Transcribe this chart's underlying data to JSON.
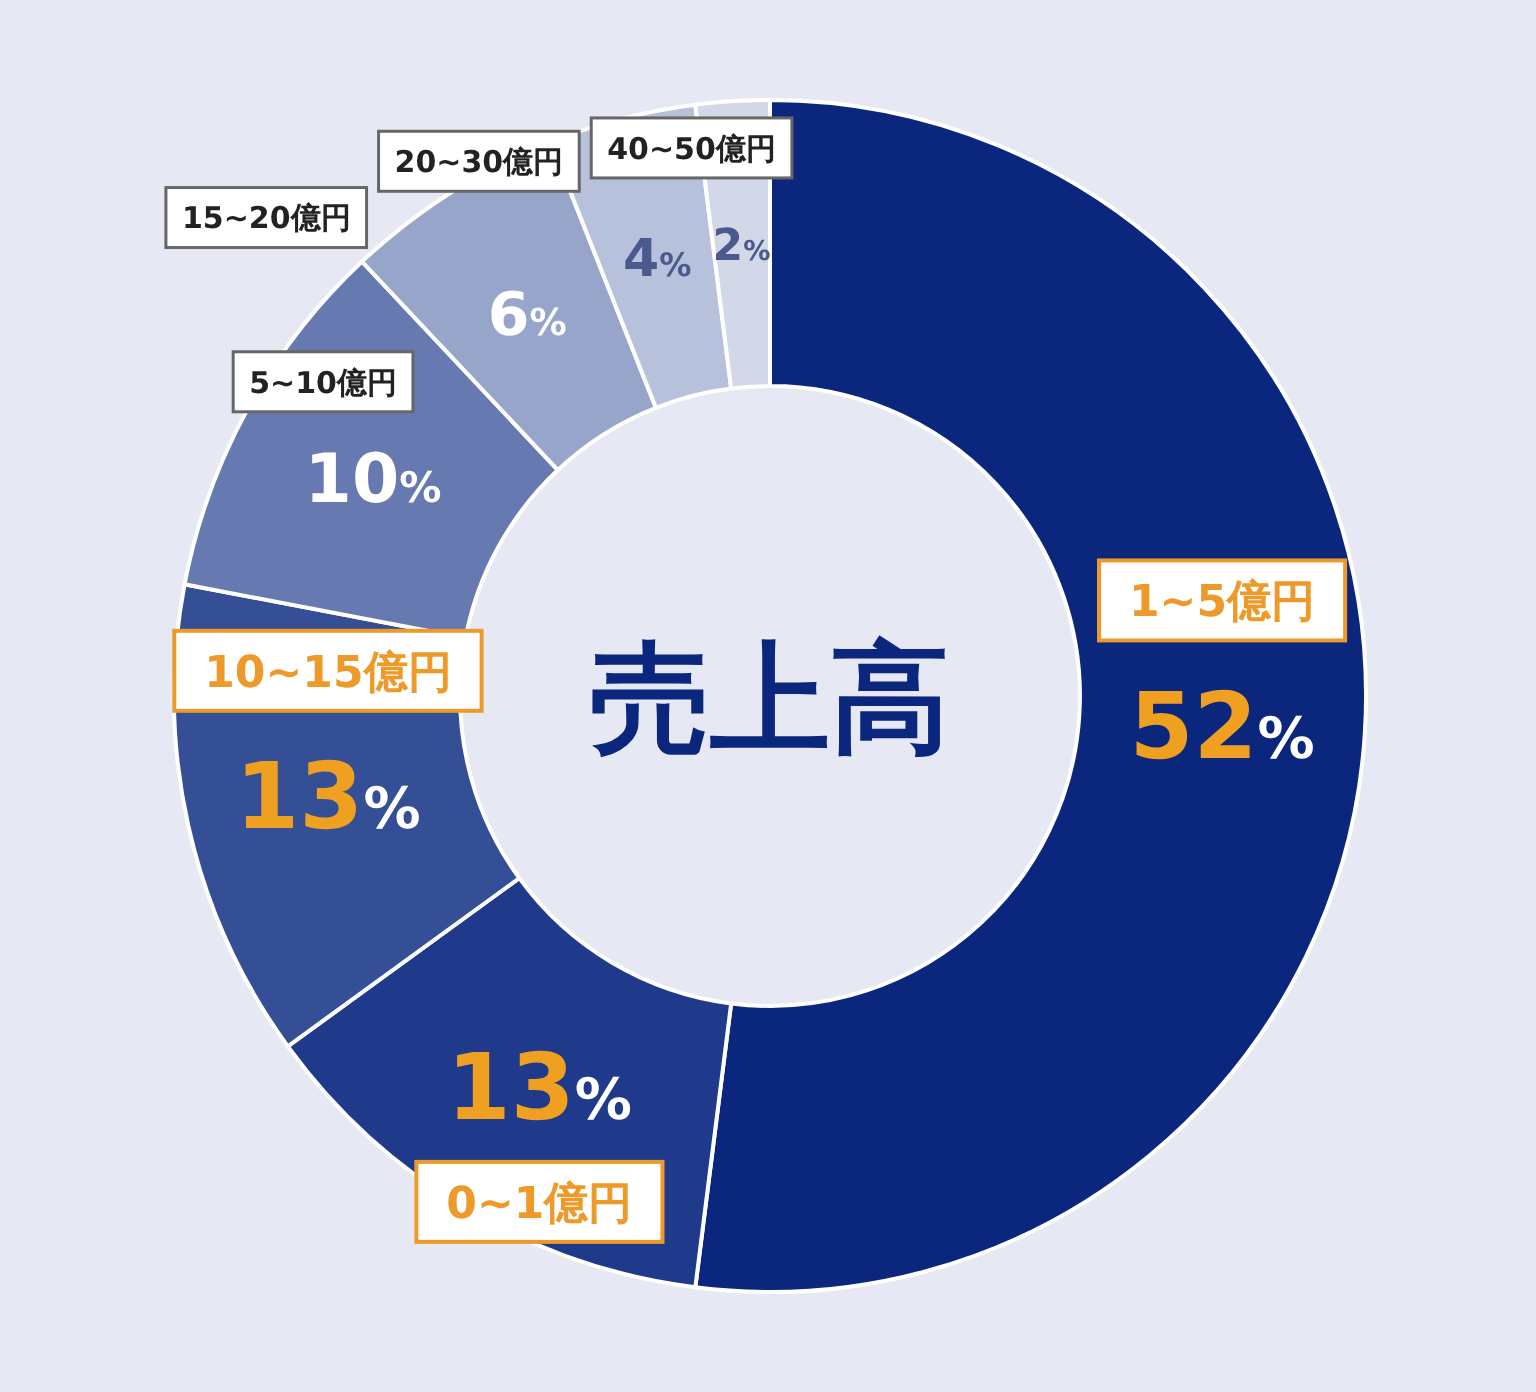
{
  "chart_data": {
    "type": "donut",
    "title": "売上高",
    "categories": [
      "1~5億円",
      "0~1億円",
      "10~15億円",
      "5~10億円",
      "15~20億円",
      "20~30億円",
      "40~50億円"
    ],
    "values": [
      52,
      13,
      13,
      10,
      6,
      4,
      2
    ],
    "colors": [
      "#0a277d",
      "#1f3a8a",
      "#354f96",
      "#6679b0",
      "#97a5cb",
      "#b8c1dc",
      "#d2d8e8"
    ],
    "value_labels": [
      "52%",
      "13%",
      "13%",
      "10%",
      "6%",
      "4%",
      "2%"
    ]
  }
}
